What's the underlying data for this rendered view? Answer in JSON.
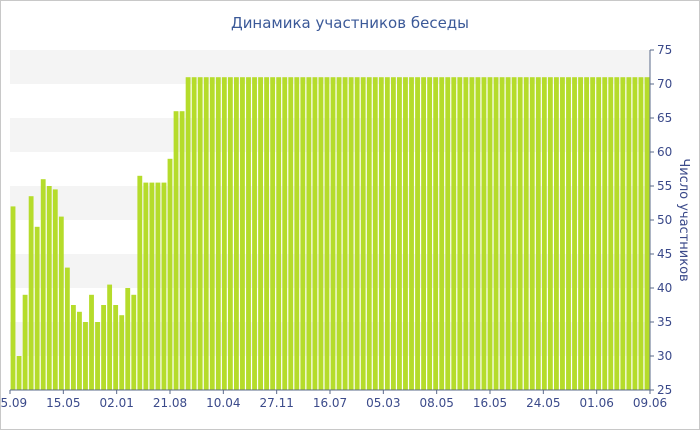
{
  "chart_data": {
    "type": "bar",
    "title": "Динамика участников беседы",
    "ylabel": "Число участников",
    "xlabel": "",
    "ylim": [
      25,
      75
    ],
    "yticks": [
      25,
      30,
      35,
      40,
      45,
      50,
      55,
      60,
      65,
      70,
      75
    ],
    "y_axis_side": "right",
    "grid": "alternating horizontal bands",
    "bar_color": "#b5dc2b",
    "band_color": "#f4f4f4",
    "x_tick_labels": [
      "25.09",
      "15.05",
      "02.01",
      "21.08",
      "10.04",
      "27.11",
      "16.07",
      "05.03",
      "08.05",
      "16.05",
      "24.05",
      "01.06",
      "09.06"
    ],
    "values": [
      52,
      30,
      39,
      53.5,
      49,
      56,
      55,
      54.5,
      50.5,
      43,
      37.5,
      36.5,
      35,
      39,
      35,
      37.5,
      40.5,
      37.5,
      36,
      40,
      39,
      56.5,
      55.5,
      55.5,
      55.5,
      55.5,
      59,
      66,
      66,
      71,
      71,
      71,
      71,
      71,
      71,
      71,
      71,
      71,
      71,
      71,
      71,
      71,
      71,
      71,
      71,
      71,
      71,
      71,
      71,
      71,
      71,
      71,
      71,
      71,
      71,
      71,
      71,
      71,
      71,
      71,
      71,
      71,
      71,
      71,
      71,
      71,
      71,
      71,
      71,
      71,
      71,
      71,
      71,
      71,
      71,
      71,
      71,
      71,
      71,
      71,
      71,
      71,
      71,
      71,
      71,
      71,
      71,
      71,
      71,
      71,
      71,
      71,
      71,
      71,
      71,
      71,
      71,
      71,
      71,
      71,
      71,
      71,
      71,
      71,
      71,
      71
    ]
  }
}
